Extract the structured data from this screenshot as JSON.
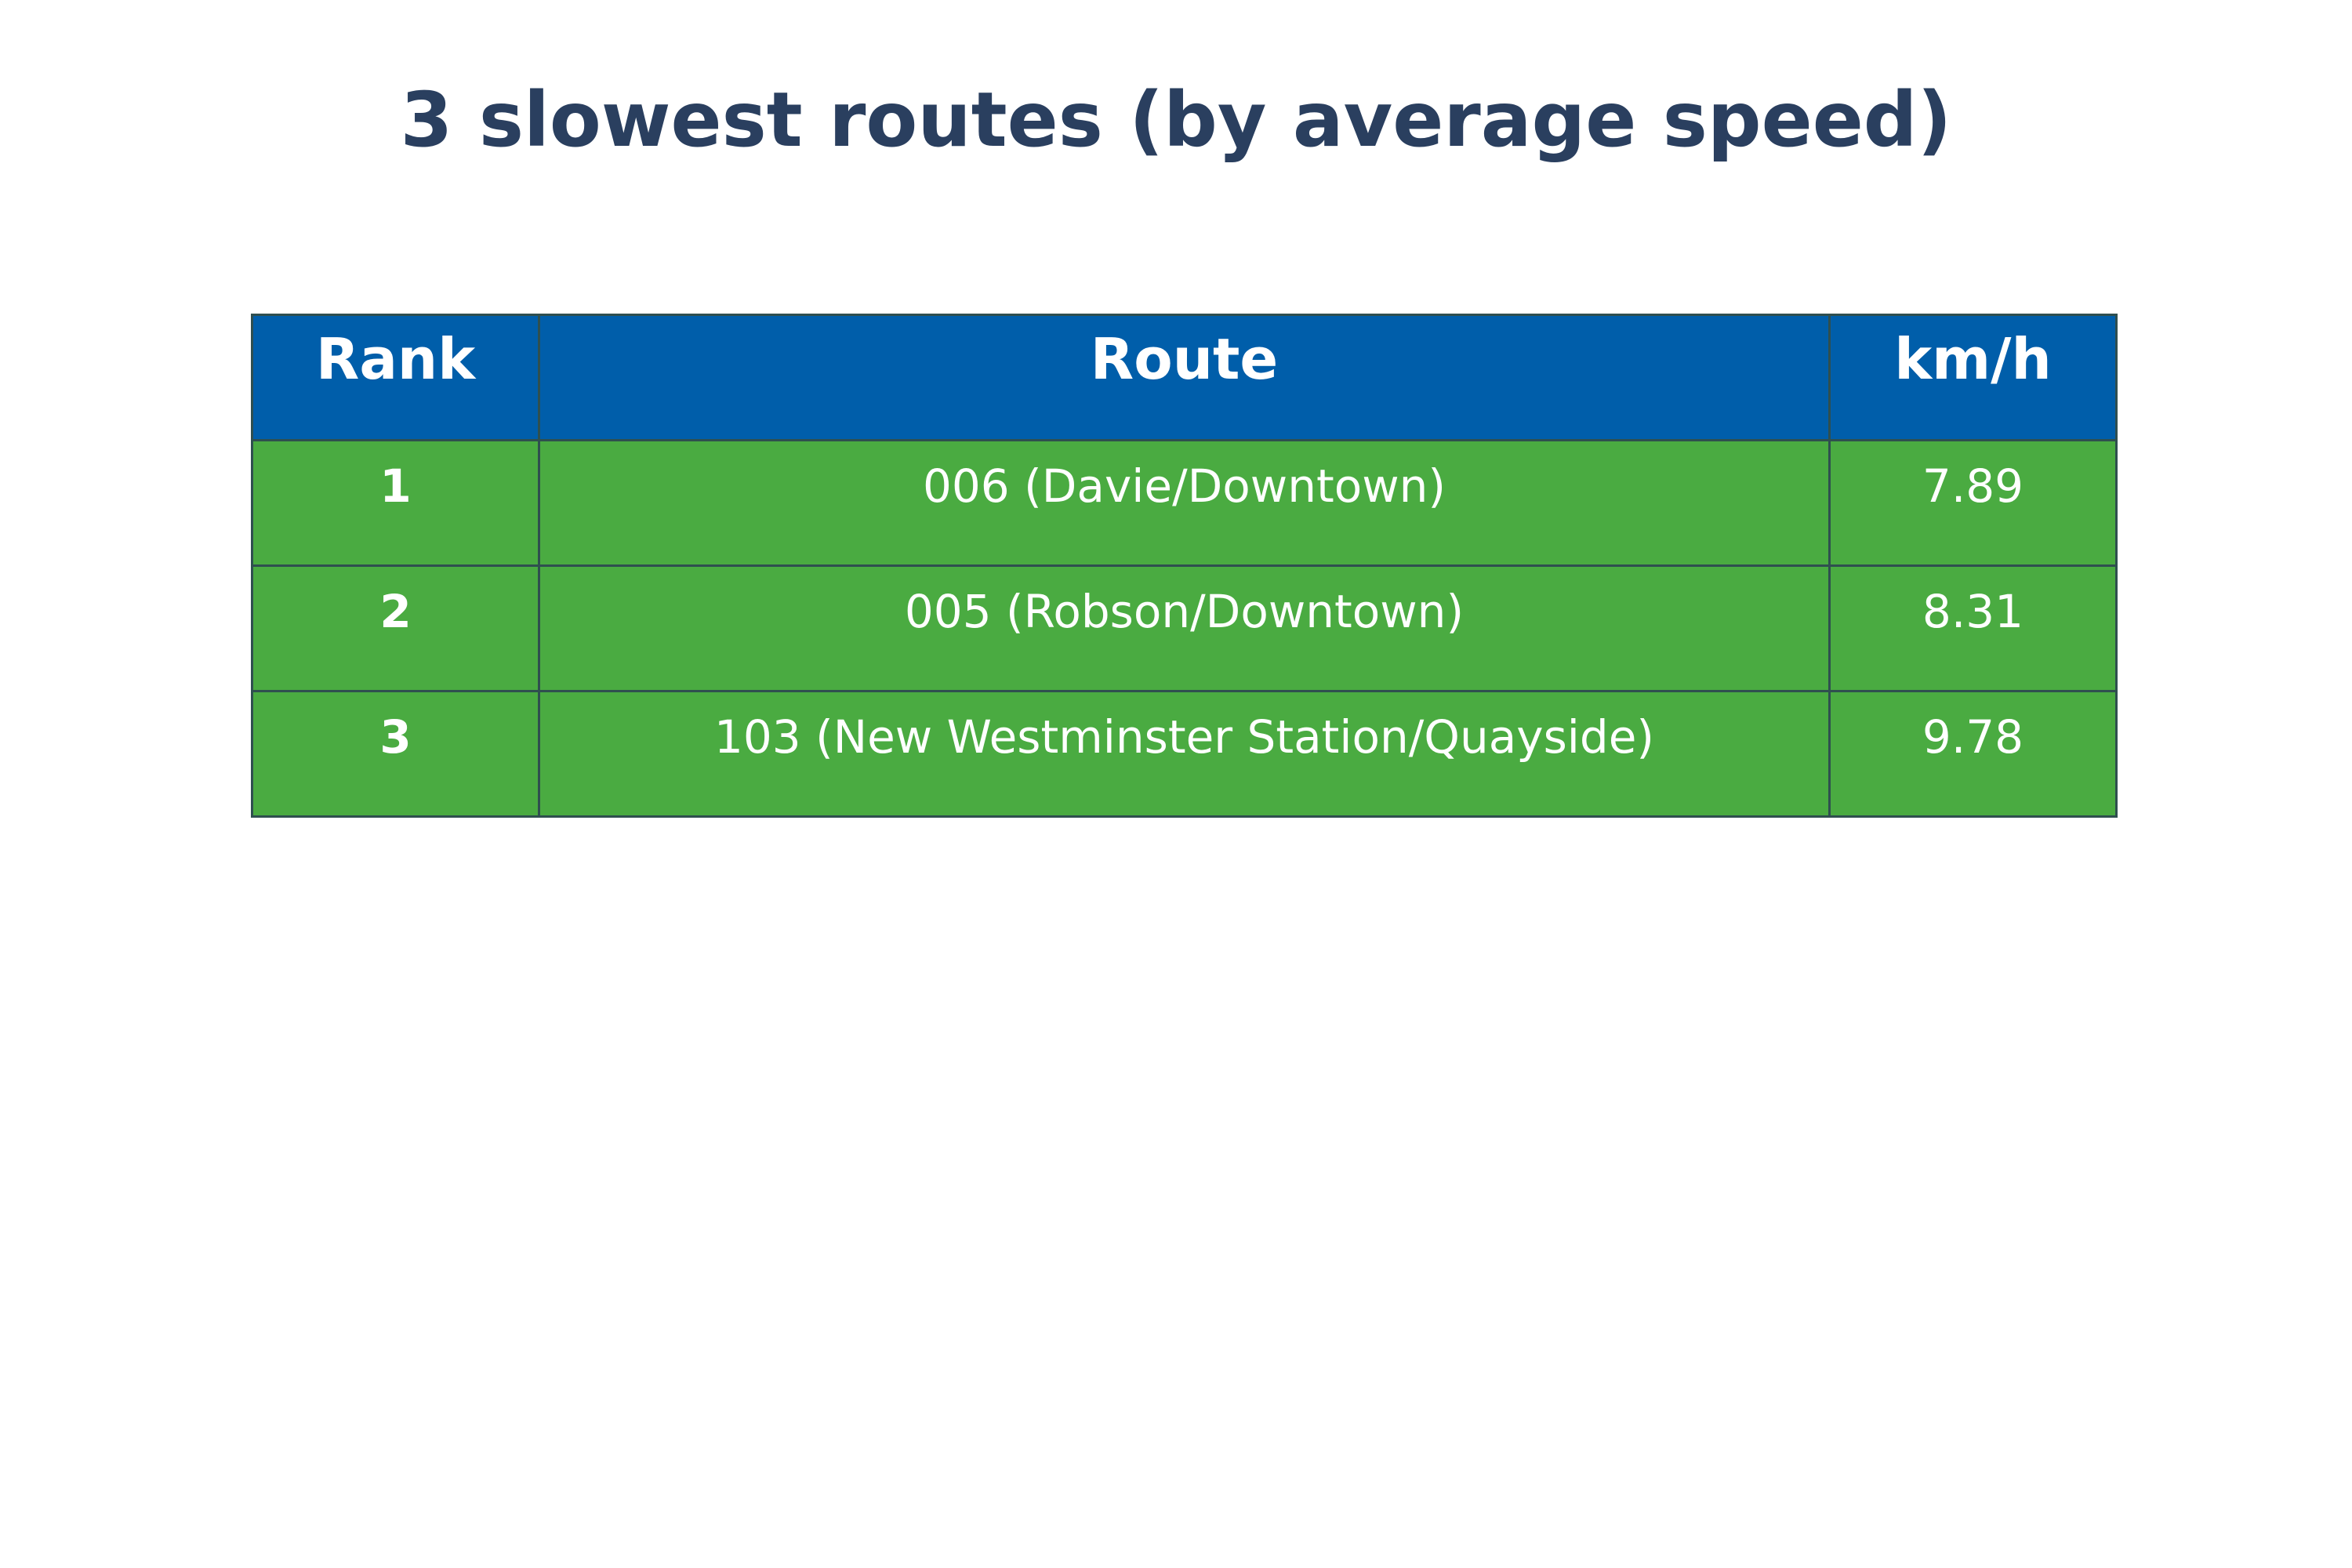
{
  "chart_data": {
    "type": "table",
    "title": "3 slowest routes (by average speed)",
    "colors": {
      "title": "#2a3f5f",
      "header_fill": "#005eaa",
      "cell_fill": "#4aab41",
      "border": "#2f4f4f",
      "text": "#ffffff"
    },
    "columns": [
      "Rank",
      "Route",
      "km/h"
    ],
    "rows": [
      {
        "rank": "1",
        "route": "006 (Davie/Downtown)",
        "speed": "7.89"
      },
      {
        "rank": "2",
        "route": "005 (Robson/Downtown)",
        "speed": "8.31"
      },
      {
        "rank": "3",
        "route": "103 (New Westminster Station/Quayside)",
        "speed": "9.78"
      }
    ]
  }
}
